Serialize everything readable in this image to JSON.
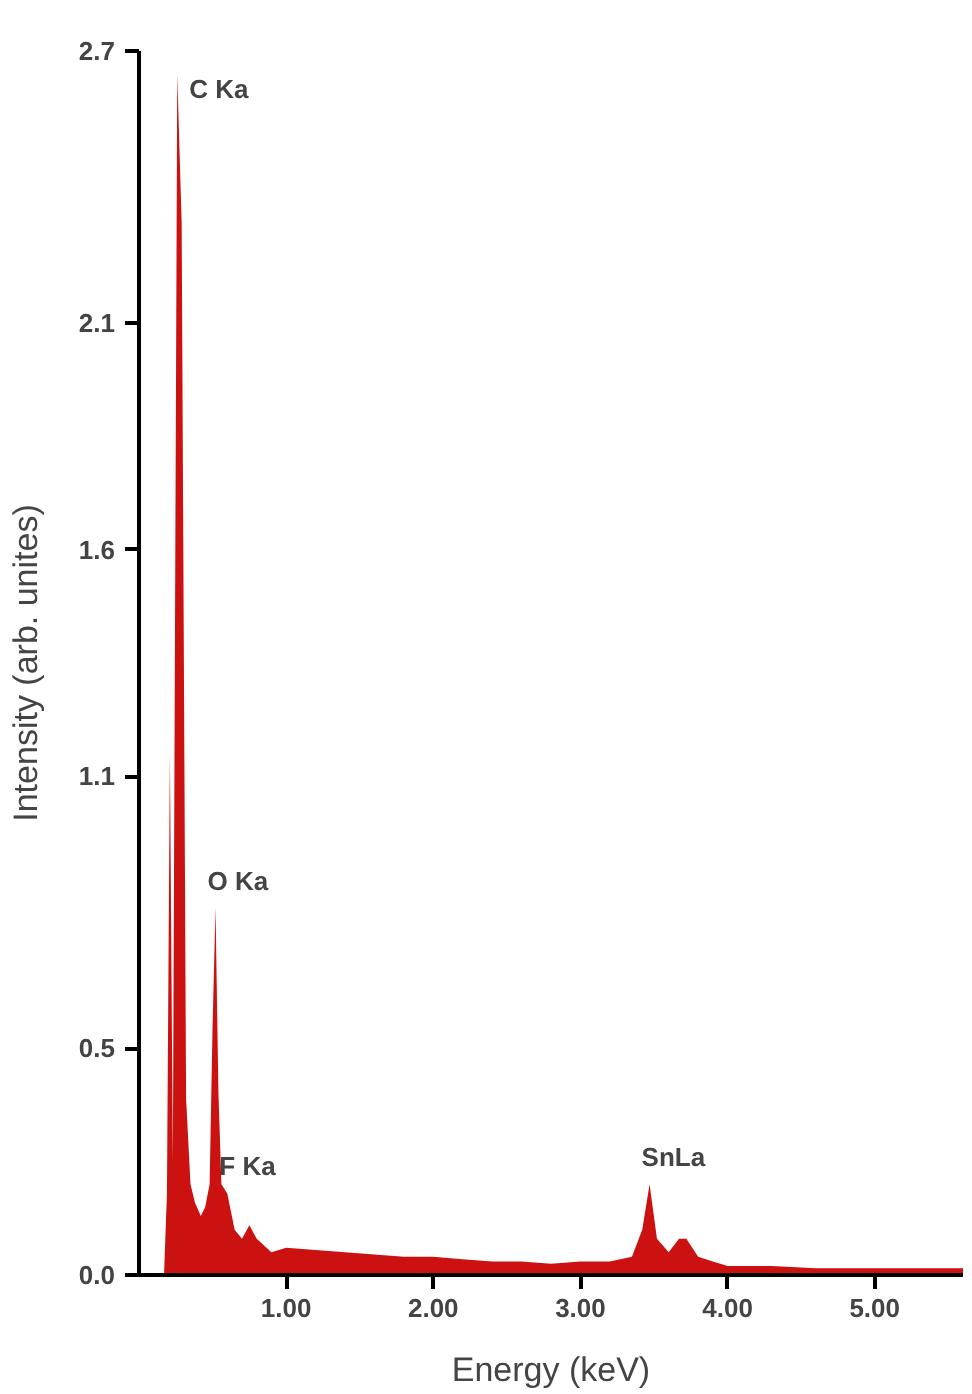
{
  "chart_data": {
    "type": "area",
    "xlabel": "Energy (keV)",
    "ylabel": "Intensity (arb. unites)",
    "x": [
      0.17,
      0.19,
      0.21,
      0.23,
      0.26,
      0.29,
      0.32,
      0.35,
      0.38,
      0.42,
      0.45,
      0.48,
      0.5,
      0.52,
      0.54,
      0.56,
      0.6,
      0.65,
      0.7,
      0.75,
      0.8,
      0.9,
      1.0,
      1.2,
      1.4,
      1.6,
      1.8,
      2.0,
      2.2,
      2.4,
      2.6,
      2.8,
      3.0,
      3.2,
      3.35,
      3.42,
      3.47,
      3.52,
      3.6,
      3.67,
      3.72,
      3.8,
      3.9,
      4.0,
      4.3,
      4.6,
      5.0,
      5.3,
      5.6
    ],
    "series": [
      {
        "color": "#cc1111",
        "values": [
          0.0,
          0.18,
          1.15,
          0.25,
          2.65,
          2.32,
          0.39,
          0.2,
          0.16,
          0.13,
          0.15,
          0.2,
          0.55,
          0.81,
          0.4,
          0.2,
          0.18,
          0.1,
          0.08,
          0.11,
          0.08,
          0.05,
          0.06,
          0.055,
          0.05,
          0.045,
          0.04,
          0.04,
          0.035,
          0.03,
          0.03,
          0.025,
          0.03,
          0.03,
          0.04,
          0.1,
          0.2,
          0.08,
          0.05,
          0.08,
          0.08,
          0.04,
          0.03,
          0.02,
          0.02,
          0.015,
          0.015,
          0.015,
          0.015
        ]
      }
    ],
    "xlim": [
      0,
      5.6
    ],
    "ylim": [
      0,
      2.7
    ],
    "xticks": [
      {
        "value": 1,
        "label": "1.00"
      },
      {
        "value": 2,
        "label": "2.00"
      },
      {
        "value": 3,
        "label": "3.00"
      },
      {
        "value": 4,
        "label": "4.00"
      },
      {
        "value": 5,
        "label": "5.00"
      }
    ],
    "yticks": [
      {
        "value": 0,
        "label": "0.0"
      },
      0.5,
      1.1,
      1.6,
      2.1,
      2.7
    ],
    "annotations": [
      {
        "text": "C Ka",
        "x": 0.26,
        "y": 2.65
      },
      {
        "text": "O Ka",
        "x": 0.52,
        "y": 0.81
      },
      {
        "text": "F Ka",
        "x": 0.6,
        "y": 0.18
      },
      {
        "text": "SnLa",
        "x": 3.47,
        "y": 0.2
      }
    ],
    "grid": false
  }
}
